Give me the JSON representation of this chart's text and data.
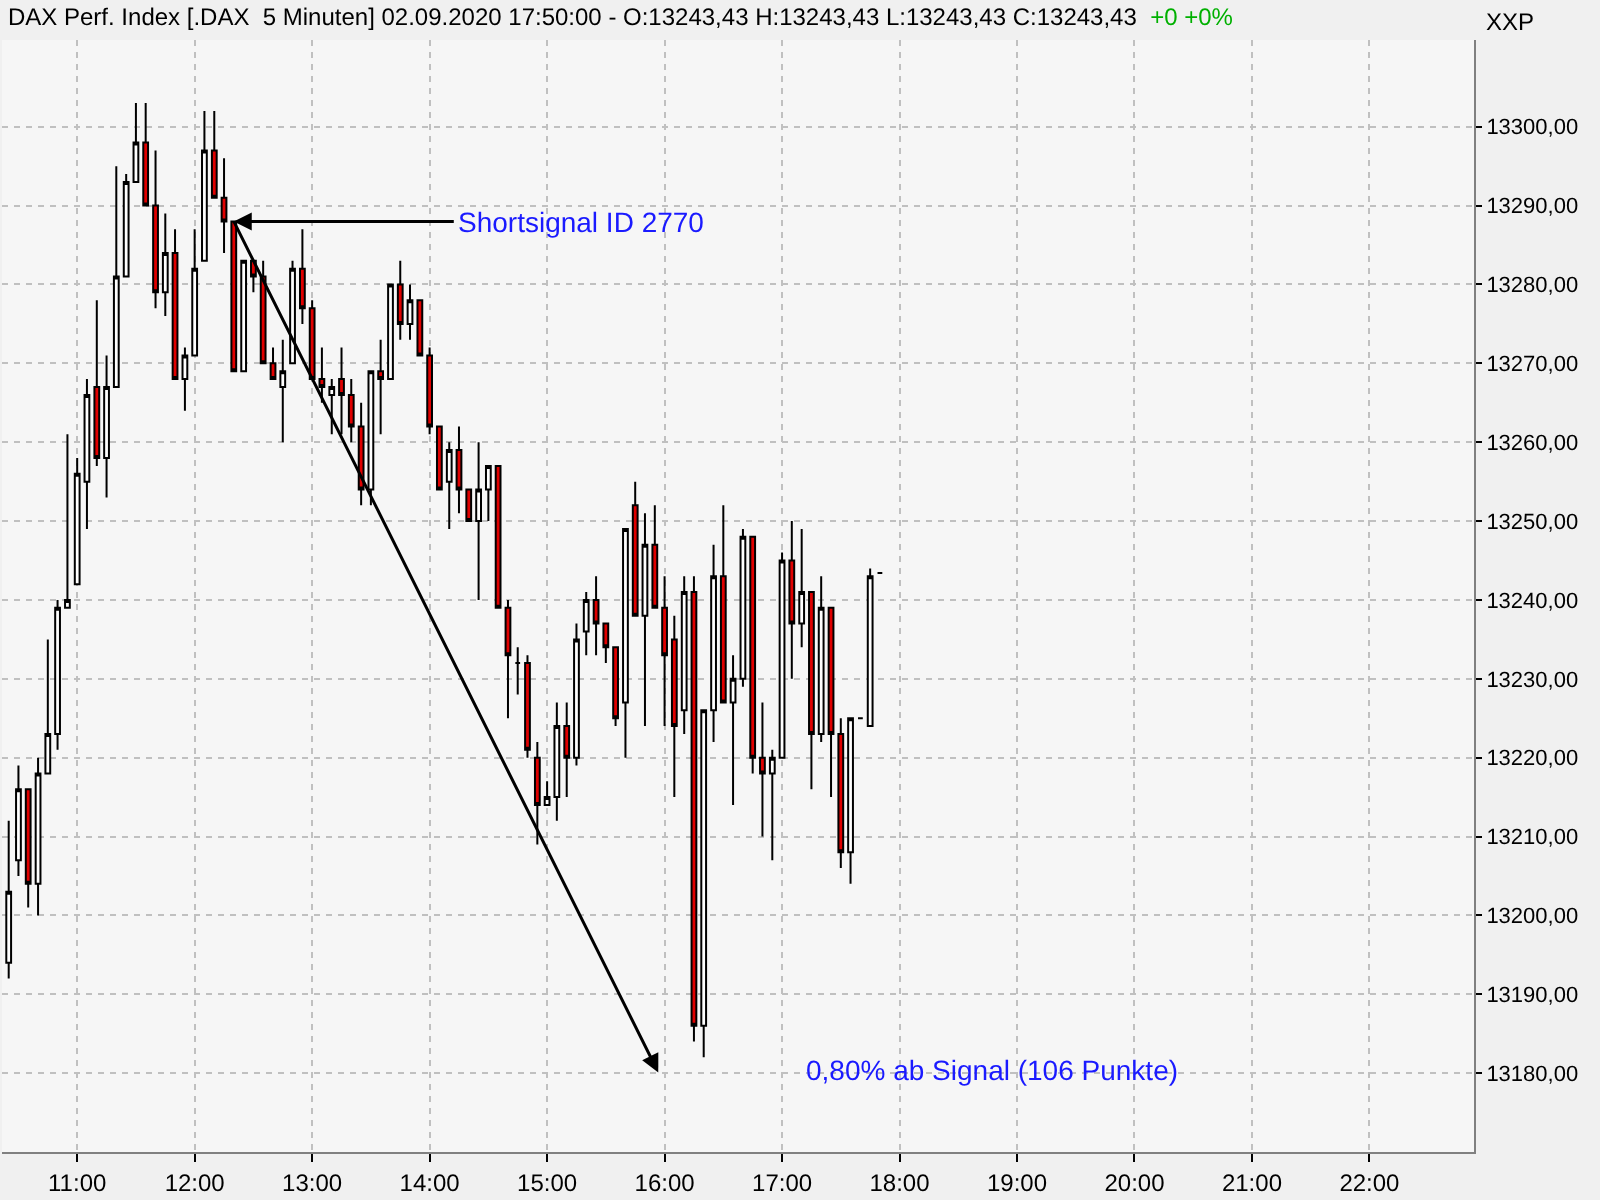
{
  "chart_data": {
    "type": "candlestick",
    "title": "DAX Perf. Index [.DAX  5 Minuten] 02.09.2020 17:50:00 - O:13243,43 H:13243,43 L:13243,43 C:13243,43",
    "subtitle": "+0 +0%",
    "x": [
      10.417,
      10.5,
      10.583,
      10.667,
      10.75,
      10.833,
      10.917,
      11.0,
      11.083,
      11.167,
      11.25,
      11.333,
      11.417,
      11.5,
      11.583,
      11.667,
      11.75,
      11.833,
      11.917,
      12.0,
      12.083,
      12.167,
      12.25,
      12.333,
      12.417,
      12.5,
      12.583,
      12.667,
      12.75,
      12.833,
      12.917,
      13.0,
      13.083,
      13.167,
      13.25,
      13.333,
      13.417,
      13.5,
      13.583,
      13.667,
      13.75,
      13.833,
      13.917,
      14.0,
      14.083,
      14.167,
      14.25,
      14.333,
      14.417,
      14.5,
      14.583,
      14.667,
      14.75,
      14.833,
      14.917,
      15.0,
      15.083,
      15.167,
      15.25,
      15.333,
      15.417,
      15.5,
      15.583,
      15.667,
      15.75,
      15.833,
      15.917,
      16.0,
      16.083,
      16.167,
      16.25,
      16.333,
      16.417,
      16.5,
      16.583,
      16.667,
      16.75,
      16.833,
      16.917,
      17.0,
      17.083,
      17.167,
      17.25,
      17.333,
      17.417,
      17.5,
      17.583,
      17.667,
      17.75,
      17.833
    ],
    "ohlc": [
      [
        13194,
        13212,
        13192,
        13203
      ],
      [
        13207,
        13219,
        13205,
        13216
      ],
      [
        13216,
        13216,
        13201,
        13204
      ],
      [
        13204,
        13220,
        13200,
        13218
      ],
      [
        13218,
        13235,
        13218,
        13223
      ],
      [
        13223,
        13240,
        13221,
        13239
      ],
      [
        13239,
        13261,
        13239,
        13240
      ],
      [
        13242,
        13258,
        13242,
        13256
      ],
      [
        13255,
        13268,
        13249,
        13266
      ],
      [
        13267,
        13278,
        13257,
        13258
      ],
      [
        13258,
        13271,
        13253,
        13267
      ],
      [
        13267,
        13295,
        13267,
        13281
      ],
      [
        13281,
        13294,
        13281,
        13293
      ],
      [
        13293,
        13303,
        13293,
        13298
      ],
      [
        13298,
        13303,
        13290,
        13290
      ],
      [
        13290,
        13297,
        13277,
        13279
      ],
      [
        13279,
        13289,
        13276,
        13284
      ],
      [
        13284,
        13287,
        13268,
        13268
      ],
      [
        13268,
        13272,
        13264,
        13271
      ],
      [
        13271,
        13287,
        13271,
        13282
      ],
      [
        13283,
        13302,
        13283,
        13297
      ],
      [
        13297,
        13302,
        13291,
        13291
      ],
      [
        13291,
        13296,
        13284,
        13288
      ],
      [
        13288,
        13288,
        13269,
        13269
      ],
      [
        13269,
        13283,
        13269,
        13283
      ],
      [
        13283,
        13283,
        13279,
        13281
      ],
      [
        13281,
        13283,
        13270,
        13270
      ],
      [
        13270,
        13272,
        13268,
        13268
      ],
      [
        13267,
        13273,
        13260,
        13269
      ],
      [
        13270,
        13283,
        13270,
        13282
      ],
      [
        13282,
        13287,
        13275,
        13277
      ],
      [
        13277,
        13278,
        13268,
        13268
      ],
      [
        13268,
        13272,
        13265,
        13267
      ],
      [
        13266,
        13268,
        13261,
        13267
      ],
      [
        13268,
        13272,
        13261,
        13266
      ],
      [
        13266,
        13268,
        13260,
        13262
      ],
      [
        13262,
        13265,
        13252,
        13254
      ],
      [
        13254,
        13269,
        13252,
        13269
      ],
      [
        13269,
        13273,
        13261,
        13268
      ],
      [
        13268,
        13280,
        13268,
        13280
      ],
      [
        13280,
        13283,
        13273,
        13275
      ],
      [
        13275,
        13280,
        13273,
        13278
      ],
      [
        13278,
        13278,
        13271,
        13271
      ],
      [
        13271,
        13272,
        13261,
        13262
      ],
      [
        13262,
        13262,
        13254,
        13254
      ],
      [
        13255,
        13260,
        13249,
        13259
      ],
      [
        13259,
        13262,
        13251,
        13254
      ],
      [
        13254,
        13254,
        13250,
        13250
      ],
      [
        13250,
        13260,
        13240,
        13254
      ],
      [
        13254,
        13257,
        13250,
        13257
      ],
      [
        13257,
        13257,
        13239,
        13239
      ],
      [
        13239,
        13240,
        13225,
        13233
      ],
      [
        13232,
        13234,
        13228,
        13232
      ],
      [
        13232,
        13233,
        13220,
        13221
      ],
      [
        13220,
        13222,
        13209,
        13214
      ],
      [
        13214,
        13217,
        13214,
        13215
      ],
      [
        13215,
        13227,
        13212,
        13224
      ],
      [
        13224,
        13227,
        13215,
        13220
      ],
      [
        13220,
        13237,
        13219,
        13235
      ],
      [
        13236,
        13241,
        13233,
        13240
      ],
      [
        13240,
        13243,
        13233,
        13237
      ],
      [
        13237,
        13237,
        13232,
        13234
      ],
      [
        13234,
        13234,
        13224,
        13225
      ],
      [
        13227,
        13249,
        13220,
        13249
      ],
      [
        13252,
        13255,
        13238,
        13238
      ],
      [
        13238,
        13251,
        13224,
        13247
      ],
      [
        13247,
        13252,
        13239,
        13239
      ],
      [
        13239,
        13243,
        13224,
        13233
      ],
      [
        13235,
        13238,
        13215,
        13224
      ],
      [
        13226,
        13243,
        13223,
        13241
      ],
      [
        13241,
        13243,
        13184,
        13186
      ],
      [
        13186,
        13226,
        13182,
        13226
      ],
      [
        13226,
        13247,
        13222,
        13243
      ],
      [
        13243,
        13252,
        13227,
        13227
      ],
      [
        13227,
        13233,
        13214,
        13230
      ],
      [
        13230,
        13249,
        13229,
        13248
      ],
      [
        13248,
        13248,
        13218,
        13220
      ],
      [
        13220,
        13227,
        13210,
        13218
      ],
      [
        13218,
        13221,
        13207,
        13220
      ],
      [
        13220,
        13246,
        13220,
        13245
      ],
      [
        13245,
        13250,
        13230,
        13237
      ],
      [
        13237,
        13249,
        13234,
        13241
      ],
      [
        13241,
        13241,
        13216,
        13223
      ],
      [
        13223,
        13243,
        13222,
        13239
      ],
      [
        13239,
        13239,
        13215,
        13223
      ],
      [
        13223,
        13225,
        13206,
        13208
      ],
      [
        13208,
        13225,
        13204,
        13225
      ],
      [
        13225,
        13225,
        13225,
        13225
      ],
      [
        13224,
        13244,
        13224,
        13243
      ],
      [
        13243.43,
        13243.43,
        13243.43,
        13243.43
      ]
    ],
    "xlim": [
      10.36,
      22.89
    ],
    "xticks": [
      {
        "value": 11,
        "label": "11:00"
      },
      {
        "value": 12,
        "label": "12:00"
      },
      {
        "value": 13,
        "label": "13:00"
      },
      {
        "value": 14,
        "label": "14:00"
      },
      {
        "value": 15,
        "label": "15:00"
      },
      {
        "value": 16,
        "label": "16:00"
      },
      {
        "value": 17,
        "label": "17:00"
      },
      {
        "value": 18,
        "label": "18:00"
      },
      {
        "value": 19,
        "label": "19:00"
      },
      {
        "value": 20,
        "label": "20:00"
      },
      {
        "value": 21,
        "label": "21:00"
      },
      {
        "value": 22,
        "label": "22:00"
      }
    ],
    "ylim": [
      13170,
      13311
    ],
    "yticks": [
      {
        "value": 13180,
        "label": "13180,00"
      },
      {
        "value": 13190,
        "label": "13190,00"
      },
      {
        "value": 13200,
        "label": "13200,00"
      },
      {
        "value": 13210,
        "label": "13210,00"
      },
      {
        "value": 13220,
        "label": "13220,00"
      },
      {
        "value": 13230,
        "label": "13230,00"
      },
      {
        "value": 13240,
        "label": "13240,00"
      },
      {
        "value": 13250,
        "label": "13250,00"
      },
      {
        "value": 13260,
        "label": "13260,00"
      },
      {
        "value": 13270,
        "label": "13270,00"
      },
      {
        "value": 13280,
        "label": "13280,00"
      },
      {
        "value": 13290,
        "label": "13290,00"
      },
      {
        "value": 13300,
        "label": "13300,00"
      }
    ],
    "grid": true,
    "annotations": [
      "XXP",
      {
        "text": "Shortsignal ID 2770",
        "x": 12.333,
        "y": 13288
      },
      "0,80% ab Signal (106 Punkte)"
    ]
  }
}
